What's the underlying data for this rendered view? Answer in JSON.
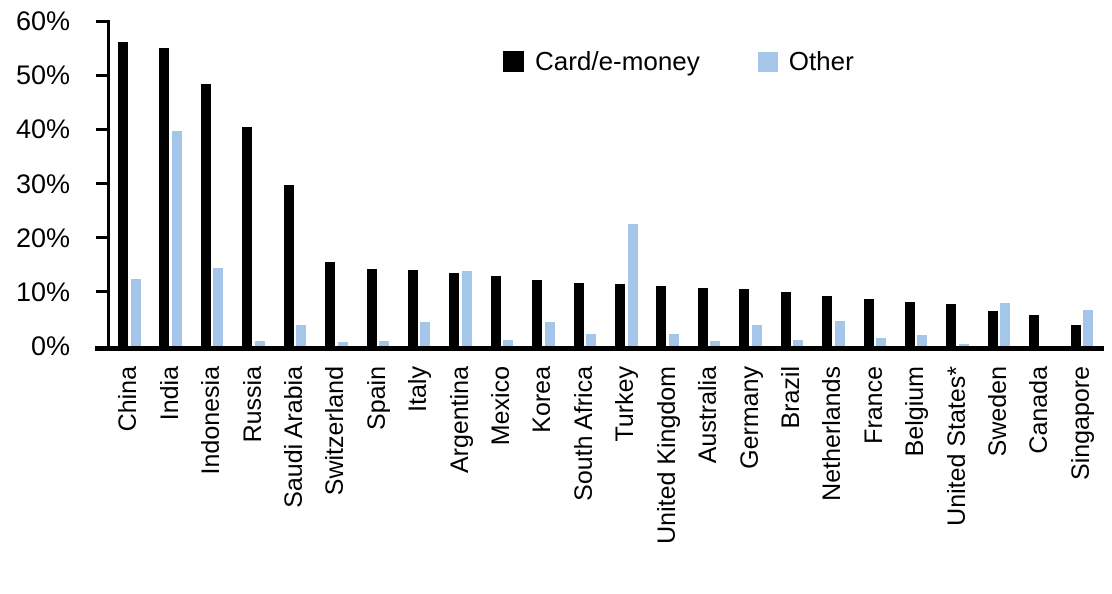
{
  "chart_data": {
    "type": "bar",
    "title": "",
    "xlabel": "",
    "ylabel": "",
    "ylim": [
      0,
      60
    ],
    "yticks": [
      "0%",
      "10%",
      "20%",
      "30%",
      "40%",
      "50%",
      "60%"
    ],
    "grid": false,
    "legend_position": "top-center",
    "background_color": "#ffffff",
    "categories": [
      "China",
      "India",
      "Indonesia",
      "Russia",
      "Saudi Arabia",
      "Switzerland",
      "Spain",
      "Italy",
      "Argentina",
      "Mexico",
      "Korea",
      "South Africa",
      "Turkey",
      "United Kingdom",
      "Australia",
      "Germany",
      "Brazil",
      "Netherlands",
      "France",
      "Belgium",
      "United States*",
      "Sweden",
      "Canada",
      "Singapore"
    ],
    "series": [
      {
        "name": "Card/e-money",
        "color": "#000000",
        "values": [
          56.2,
          55.0,
          48.3,
          40.4,
          29.7,
          15.6,
          14.2,
          14.1,
          13.4,
          12.9,
          12.2,
          11.7,
          11.5,
          11.0,
          10.7,
          10.6,
          9.9,
          9.2,
          8.6,
          8.2,
          7.8,
          6.4,
          5.8,
          3.8
        ]
      },
      {
        "name": "Other",
        "color": "#a4c6e8",
        "values": [
          12.3,
          39.7,
          14.5,
          0.9,
          3.9,
          0.7,
          0.9,
          4.5,
          13.8,
          1.2,
          4.5,
          2.3,
          22.6,
          2.3,
          1.0,
          3.8,
          1.1,
          4.7,
          1.5,
          2.0,
          0.3,
          7.9,
          0.0,
          6.6
        ]
      }
    ]
  }
}
